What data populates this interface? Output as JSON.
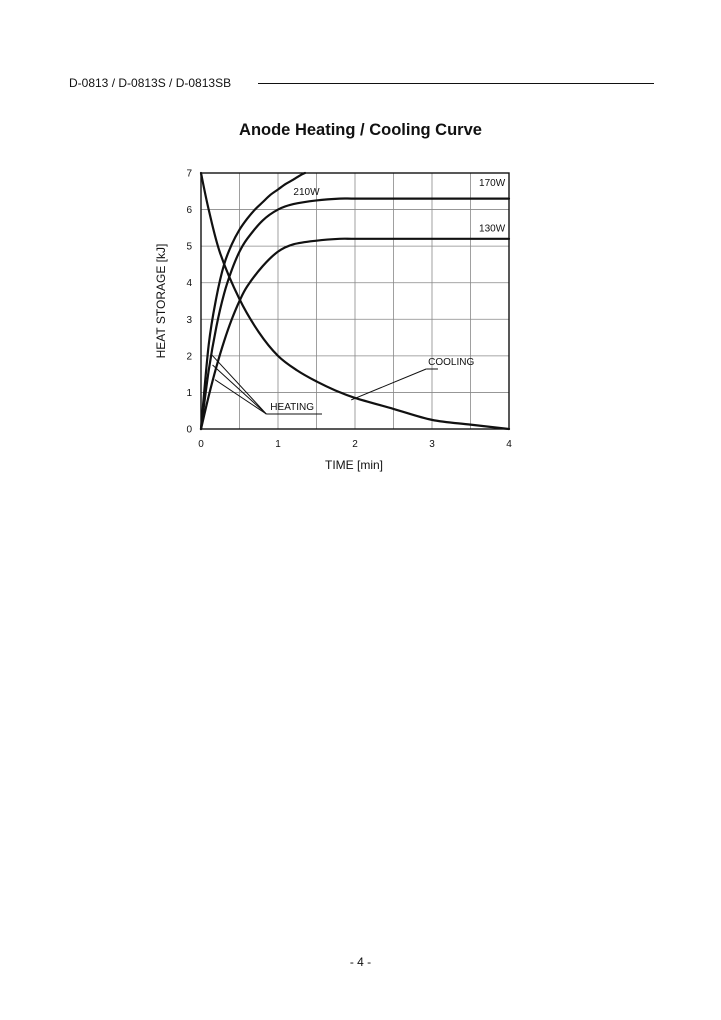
{
  "header": {
    "model": "D-0813 / D-0813S / D-0813SB"
  },
  "page": {
    "number": "- 4 -"
  },
  "colors": {
    "ink": "#111111",
    "grid": "#888888",
    "background": "#ffffff"
  },
  "chart_data": {
    "type": "line",
    "title": "Anode Heating / Cooling Curve",
    "xlabel": "TIME  [min]",
    "ylabel": "HEAT STORAGE  [kJ]",
    "xlim": [
      0,
      4
    ],
    "ylim": [
      0,
      7
    ],
    "xticks": [
      0,
      1,
      2,
      3,
      4
    ],
    "yticks": [
      0,
      1,
      2,
      3,
      4,
      5,
      6,
      7
    ],
    "grid": "minor lines every 0.5 min and 1 kJ",
    "legend": "none (curves labeled directly)",
    "series": [
      {
        "name": "210W",
        "x": [
          0,
          0.1,
          0.2,
          0.3,
          0.4,
          0.5,
          0.6,
          0.7,
          0.8,
          0.9,
          1.0,
          1.1,
          1.2,
          1.3,
          1.35
        ],
        "y": [
          0,
          2.3,
          3.6,
          4.5,
          5.05,
          5.45,
          5.75,
          6.0,
          6.2,
          6.4,
          6.55,
          6.7,
          6.82,
          6.95,
          7.0
        ]
      },
      {
        "name": "170W",
        "x": [
          0,
          0.1,
          0.2,
          0.3,
          0.4,
          0.5,
          0.6,
          0.8,
          1.0,
          1.2,
          1.5,
          1.8,
          2.0,
          2.5,
          3.0,
          4.0
        ],
        "y": [
          0,
          1.6,
          2.8,
          3.7,
          4.35,
          4.85,
          5.2,
          5.7,
          6.0,
          6.15,
          6.25,
          6.3,
          6.3,
          6.3,
          6.3,
          6.3
        ]
      },
      {
        "name": "130W",
        "x": [
          0,
          0.1,
          0.2,
          0.3,
          0.4,
          0.5,
          0.6,
          0.8,
          1.0,
          1.2,
          1.5,
          1.8,
          2.0,
          2.5,
          3.0,
          4.0
        ],
        "y": [
          0,
          0.9,
          1.7,
          2.4,
          3.0,
          3.5,
          3.9,
          4.45,
          4.85,
          5.05,
          5.15,
          5.2,
          5.2,
          5.2,
          5.2,
          5.2
        ]
      },
      {
        "name": "COOLING",
        "x": [
          0,
          0.1,
          0.25,
          0.5,
          0.75,
          1.0,
          1.25,
          1.5,
          1.75,
          2.0,
          2.5,
          3.0,
          3.5,
          4.0
        ],
        "y": [
          7.0,
          6.0,
          4.8,
          3.55,
          2.65,
          2.0,
          1.6,
          1.3,
          1.05,
          0.85,
          0.55,
          0.25,
          0.12,
          0.0
        ]
      }
    ],
    "annotations": [
      {
        "text": "210W",
        "x": 1.2,
        "y": 6.4
      },
      {
        "text": "170W",
        "x": 3.95,
        "y": 6.65
      },
      {
        "text": "130W",
        "x": 3.95,
        "y": 5.4
      },
      {
        "text": "COOLING",
        "x": 2.95,
        "y": 1.75
      },
      {
        "text": "HEATING",
        "x": 0.9,
        "y": 0.52
      }
    ]
  }
}
